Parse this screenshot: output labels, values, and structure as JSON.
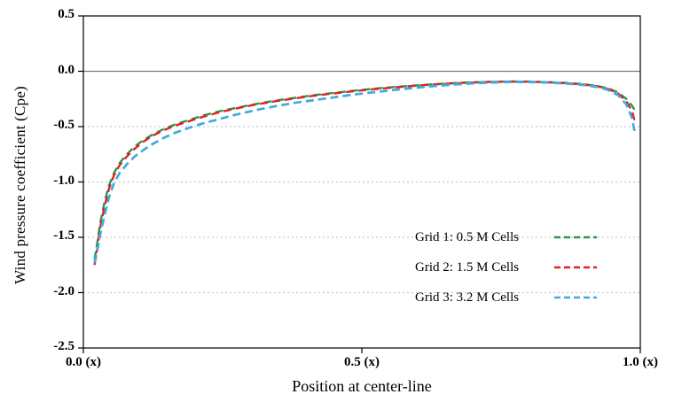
{
  "chart_data": {
    "type": "line",
    "title": "",
    "xlabel": "Position at center-line",
    "ylabel": "Wind pressure coefficient (Cpe)",
    "xlim": [
      0,
      1
    ],
    "ylim": [
      -2.5,
      0.5
    ],
    "grid": "horizontal dotted at 0.5 intervals",
    "zero_line": true,
    "legend_position": "inside lower-right",
    "axis_color": "#000000",
    "grid_color": "#bdbdbd",
    "zero_line_color": "#7a7a7a",
    "x_ticks": [
      {
        "value": 0.0,
        "label": "0.0 (x)"
      },
      {
        "value": 0.5,
        "label": "0.5 (x)"
      },
      {
        "value": 1.0,
        "label": "1.0 (x)"
      }
    ],
    "y_ticks": [
      {
        "value": 0.5,
        "label": "0.5"
      },
      {
        "value": 0.0,
        "label": "0.0"
      },
      {
        "value": -0.5,
        "label": "-0.5"
      },
      {
        "value": -1.0,
        "label": "-1.0"
      },
      {
        "value": -1.5,
        "label": "-1.5"
      },
      {
        "value": -2.0,
        "label": "-2.0"
      },
      {
        "value": -2.5,
        "label": "-2.5"
      }
    ],
    "series": [
      {
        "name": "Grid 1: 0.5 M Cells",
        "color": "#27984c",
        "style": "dashed",
        "points": [
          [
            0.02,
            -1.7
          ],
          [
            0.025,
            -1.55
          ],
          [
            0.03,
            -1.38
          ],
          [
            0.038,
            -1.18
          ],
          [
            0.046,
            -1.03
          ],
          [
            0.055,
            -0.92
          ],
          [
            0.065,
            -0.83
          ],
          [
            0.078,
            -0.75
          ],
          [
            0.092,
            -0.68
          ],
          [
            0.108,
            -0.62
          ],
          [
            0.125,
            -0.57
          ],
          [
            0.145,
            -0.52
          ],
          [
            0.165,
            -0.48
          ],
          [
            0.19,
            -0.44
          ],
          [
            0.215,
            -0.4
          ],
          [
            0.245,
            -0.36
          ],
          [
            0.275,
            -0.33
          ],
          [
            0.31,
            -0.295
          ],
          [
            0.345,
            -0.265
          ],
          [
            0.38,
            -0.24
          ],
          [
            0.415,
            -0.215
          ],
          [
            0.45,
            -0.195
          ],
          [
            0.485,
            -0.175
          ],
          [
            0.52,
            -0.158
          ],
          [
            0.555,
            -0.143
          ],
          [
            0.59,
            -0.13
          ],
          [
            0.625,
            -0.118
          ],
          [
            0.66,
            -0.108
          ],
          [
            0.695,
            -0.1
          ],
          [
            0.73,
            -0.095
          ],
          [
            0.765,
            -0.092
          ],
          [
            0.8,
            -0.093
          ],
          [
            0.835,
            -0.098
          ],
          [
            0.865,
            -0.105
          ],
          [
            0.895,
            -0.115
          ],
          [
            0.92,
            -0.13
          ],
          [
            0.94,
            -0.15
          ],
          [
            0.96,
            -0.19
          ],
          [
            0.975,
            -0.25
          ],
          [
            0.985,
            -0.31
          ],
          [
            0.99,
            -0.35
          ]
        ]
      },
      {
        "name": "Grid 2: 1.5 M Cells",
        "color": "#e02222",
        "style": "dashed",
        "points": [
          [
            0.02,
            -1.75
          ],
          [
            0.025,
            -1.6
          ],
          [
            0.03,
            -1.42
          ],
          [
            0.038,
            -1.22
          ],
          [
            0.046,
            -1.06
          ],
          [
            0.055,
            -0.94
          ],
          [
            0.065,
            -0.85
          ],
          [
            0.078,
            -0.77
          ],
          [
            0.092,
            -0.7
          ],
          [
            0.108,
            -0.635
          ],
          [
            0.125,
            -0.58
          ],
          [
            0.145,
            -0.53
          ],
          [
            0.165,
            -0.49
          ],
          [
            0.19,
            -0.45
          ],
          [
            0.215,
            -0.41
          ],
          [
            0.245,
            -0.37
          ],
          [
            0.275,
            -0.335
          ],
          [
            0.31,
            -0.3
          ],
          [
            0.345,
            -0.27
          ],
          [
            0.38,
            -0.245
          ],
          [
            0.415,
            -0.22
          ],
          [
            0.45,
            -0.2
          ],
          [
            0.485,
            -0.18
          ],
          [
            0.52,
            -0.162
          ],
          [
            0.555,
            -0.147
          ],
          [
            0.59,
            -0.133
          ],
          [
            0.625,
            -0.12
          ],
          [
            0.66,
            -0.11
          ],
          [
            0.695,
            -0.102
          ],
          [
            0.73,
            -0.096
          ],
          [
            0.765,
            -0.093
          ],
          [
            0.8,
            -0.094
          ],
          [
            0.835,
            -0.099
          ],
          [
            0.865,
            -0.107
          ],
          [
            0.895,
            -0.118
          ],
          [
            0.92,
            -0.133
          ],
          [
            0.94,
            -0.155
          ],
          [
            0.96,
            -0.2
          ],
          [
            0.975,
            -0.27
          ],
          [
            0.985,
            -0.36
          ],
          [
            0.99,
            -0.45
          ]
        ]
      },
      {
        "name": "Grid 3: 3.2 M Cells",
        "color": "#41aadf",
        "style": "dashed",
        "points": [
          [
            0.02,
            -1.73
          ],
          [
            0.025,
            -1.62
          ],
          [
            0.03,
            -1.48
          ],
          [
            0.038,
            -1.3
          ],
          [
            0.046,
            -1.14
          ],
          [
            0.055,
            -1.01
          ],
          [
            0.065,
            -0.92
          ],
          [
            0.078,
            -0.84
          ],
          [
            0.092,
            -0.77
          ],
          [
            0.108,
            -0.71
          ],
          [
            0.125,
            -0.655
          ],
          [
            0.145,
            -0.6
          ],
          [
            0.165,
            -0.555
          ],
          [
            0.19,
            -0.51
          ],
          [
            0.215,
            -0.47
          ],
          [
            0.245,
            -0.43
          ],
          [
            0.275,
            -0.39
          ],
          [
            0.31,
            -0.35
          ],
          [
            0.345,
            -0.315
          ],
          [
            0.38,
            -0.285
          ],
          [
            0.415,
            -0.26
          ],
          [
            0.45,
            -0.235
          ],
          [
            0.485,
            -0.21
          ],
          [
            0.52,
            -0.19
          ],
          [
            0.555,
            -0.17
          ],
          [
            0.59,
            -0.152
          ],
          [
            0.625,
            -0.136
          ],
          [
            0.66,
            -0.122
          ],
          [
            0.695,
            -0.11
          ],
          [
            0.73,
            -0.102
          ],
          [
            0.765,
            -0.097
          ],
          [
            0.8,
            -0.097
          ],
          [
            0.835,
            -0.102
          ],
          [
            0.865,
            -0.11
          ],
          [
            0.895,
            -0.122
          ],
          [
            0.92,
            -0.14
          ],
          [
            0.94,
            -0.165
          ],
          [
            0.96,
            -0.215
          ],
          [
            0.975,
            -0.3
          ],
          [
            0.985,
            -0.42
          ],
          [
            0.99,
            -0.55
          ]
        ]
      }
    ]
  }
}
